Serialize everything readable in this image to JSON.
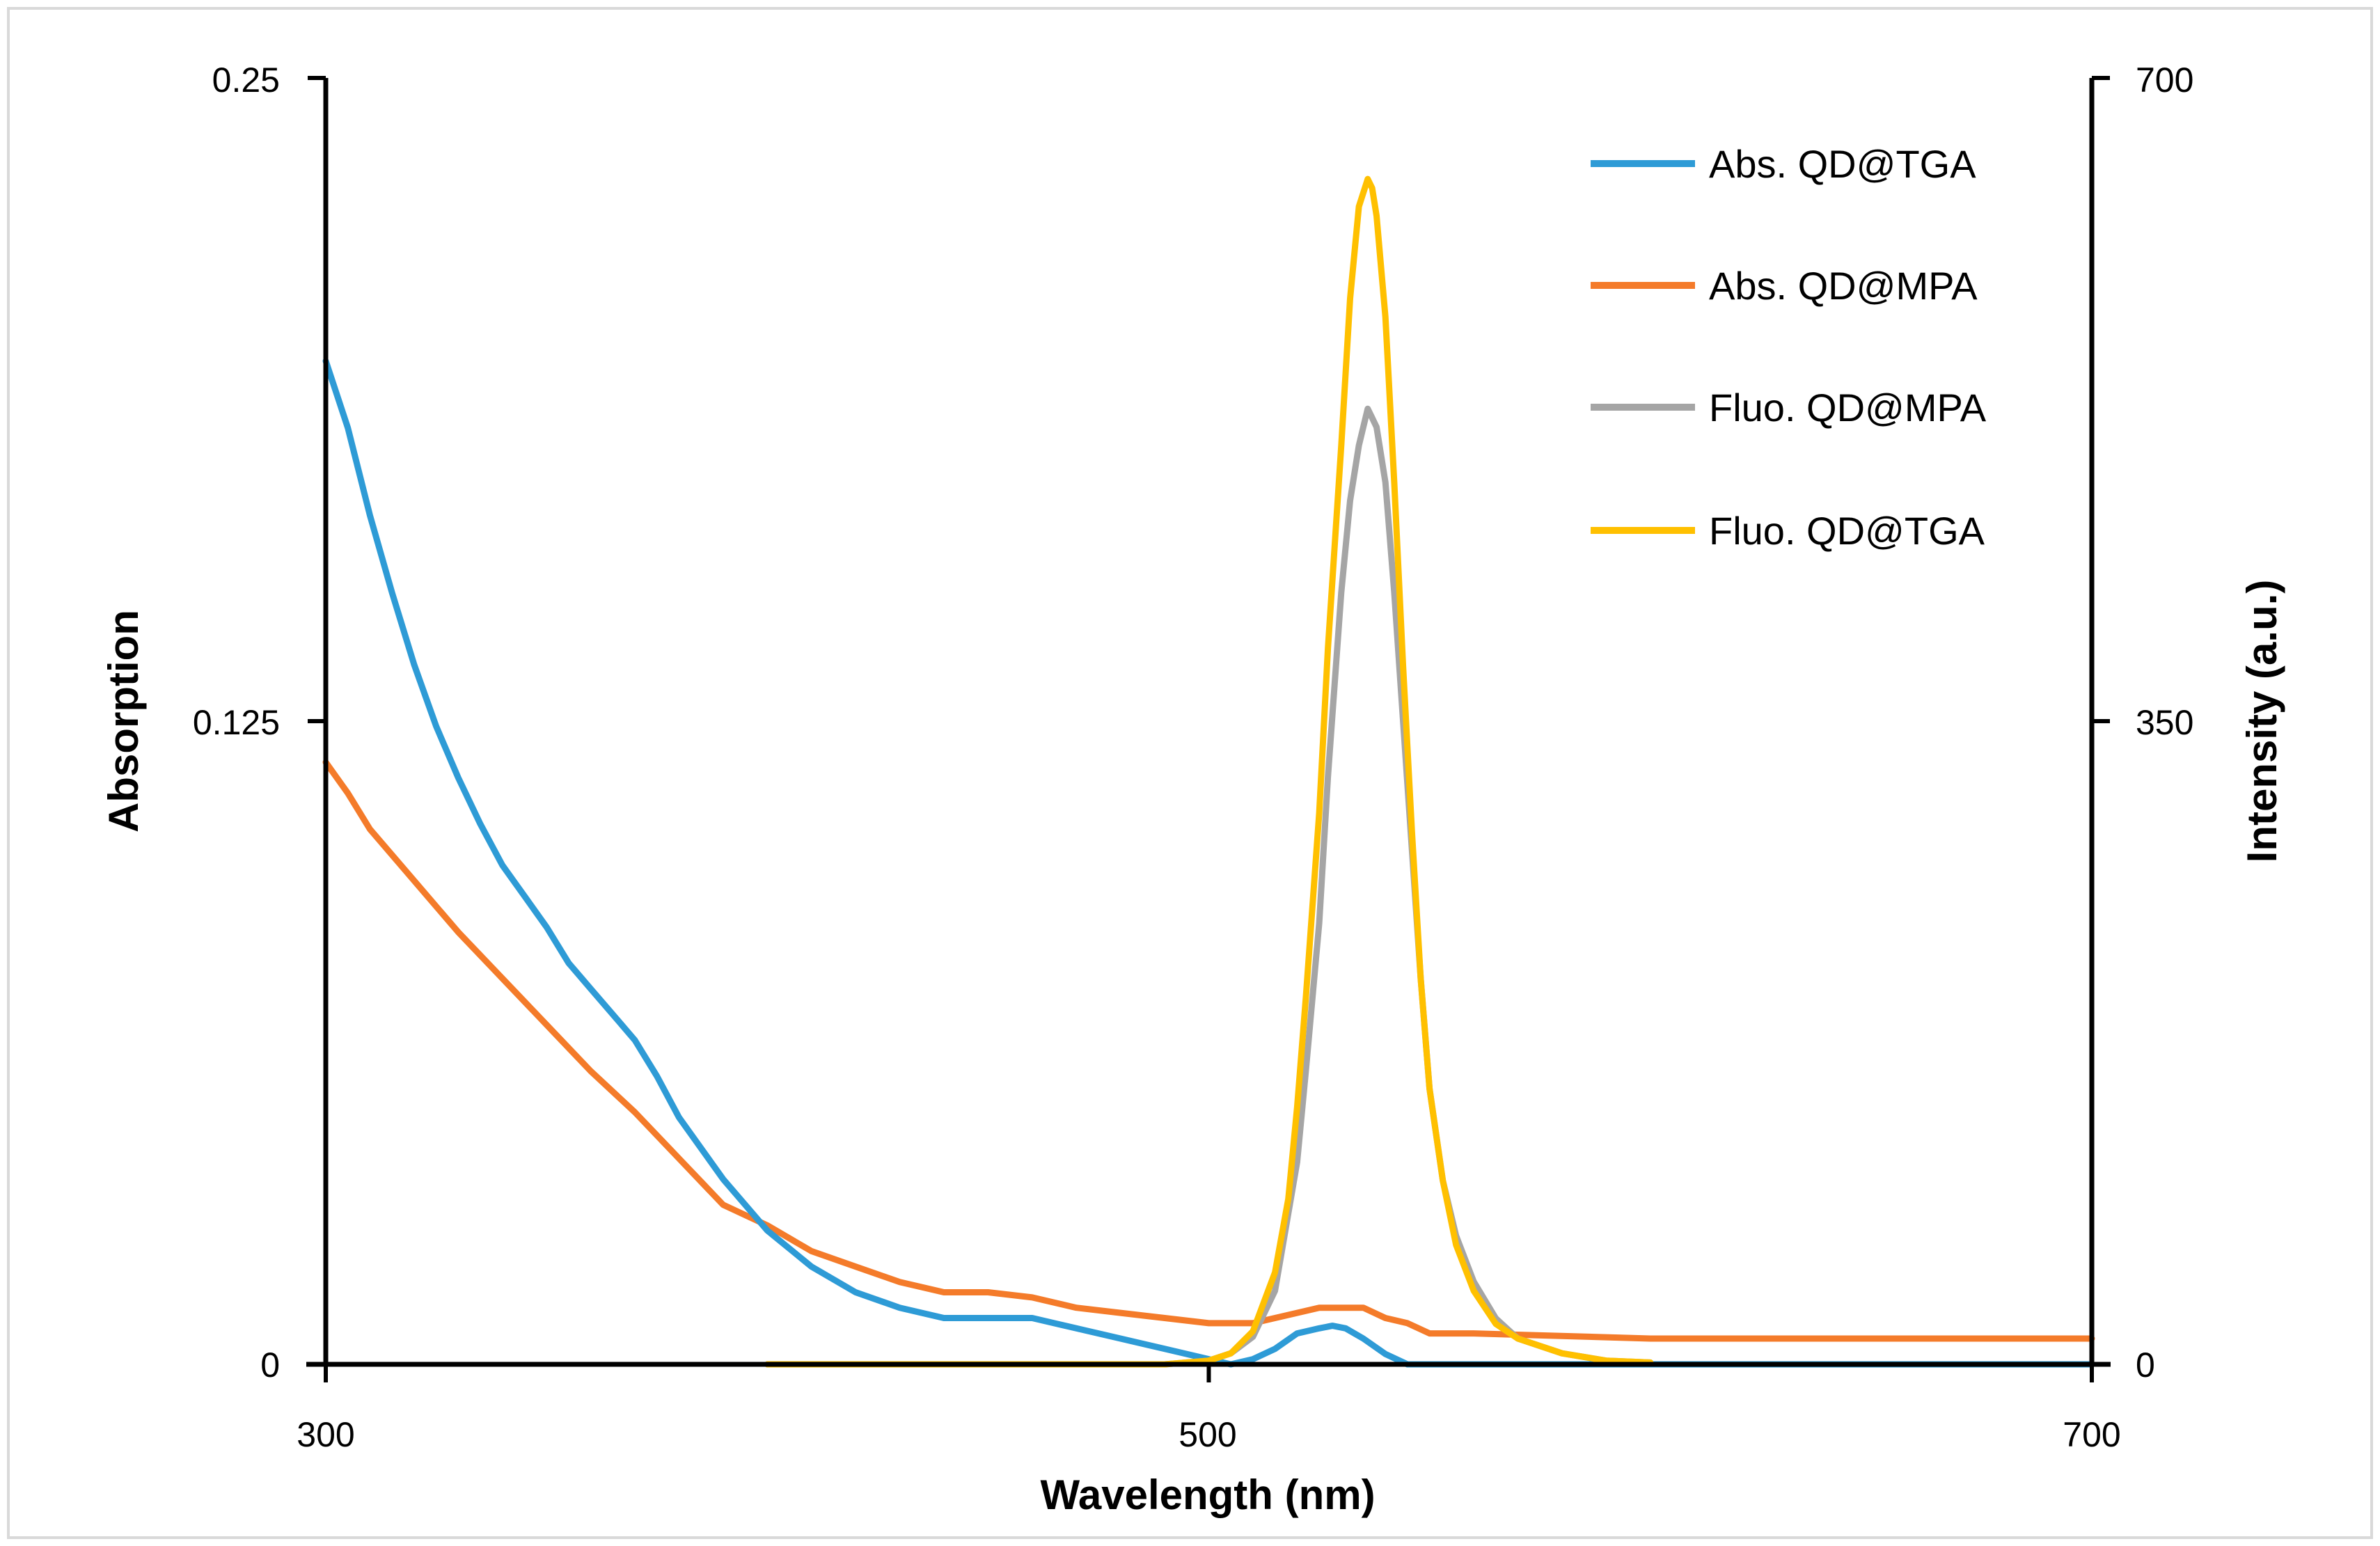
{
  "chart_data": {
    "type": "line",
    "title": "",
    "xlabel": "Wavelength (nm)",
    "ylabel_left": "Absorption",
    "ylabel_right": "Intensity (a.u.)",
    "xlim": [
      300,
      700
    ],
    "ylim_left": [
      0,
      0.25
    ],
    "ylim_right": [
      0,
      700
    ],
    "x_ticks": [
      "300",
      "500",
      "700"
    ],
    "y_left_ticks": [
      "0",
      "0.125",
      "0.25"
    ],
    "y_right_ticks": [
      "0",
      "350",
      "700"
    ],
    "grid": false,
    "legend_position": "top-right",
    "series": [
      {
        "name": "Abs. QD@TGA",
        "axis": "left",
        "color": "#2E9BD6",
        "x": [
          300,
          305,
          310,
          315,
          320,
          325,
          330,
          335,
          340,
          345,
          350,
          355,
          360,
          365,
          370,
          375,
          380,
          390,
          400,
          410,
          420,
          430,
          440,
          450,
          460,
          470,
          480,
          490,
          500,
          505,
          510,
          515,
          520,
          525,
          528,
          531,
          535,
          540,
          545,
          550,
          560,
          600,
          650,
          700
        ],
        "values": [
          0.195,
          0.182,
          0.165,
          0.15,
          0.136,
          0.124,
          0.114,
          0.105,
          0.097,
          0.091,
          0.085,
          0.078,
          0.073,
          0.068,
          0.063,
          0.056,
          0.048,
          0.036,
          0.026,
          0.019,
          0.014,
          0.011,
          0.009,
          0.009,
          0.009,
          0.007,
          0.005,
          0.003,
          0.001,
          0.0,
          0.001,
          0.003,
          0.006,
          0.007,
          0.0075,
          0.007,
          0.005,
          0.002,
          0.0,
          0.0,
          0.0,
          0.0,
          0.0,
          0.0
        ]
      },
      {
        "name": "Abs. QD@MPA",
        "axis": "left",
        "color": "#F47B2A",
        "x": [
          300,
          305,
          310,
          320,
          330,
          340,
          350,
          360,
          370,
          380,
          390,
          400,
          410,
          420,
          430,
          440,
          450,
          460,
          470,
          480,
          490,
          500,
          510,
          515,
          520,
          525,
          530,
          535,
          540,
          545,
          550,
          560,
          600,
          650,
          700
        ],
        "values": [
          0.117,
          0.111,
          0.104,
          0.094,
          0.084,
          0.075,
          0.066,
          0.057,
          0.049,
          0.04,
          0.031,
          0.027,
          0.022,
          0.019,
          0.016,
          0.014,
          0.014,
          0.013,
          0.011,
          0.01,
          0.009,
          0.008,
          0.008,
          0.009,
          0.01,
          0.011,
          0.011,
          0.011,
          0.009,
          0.008,
          0.006,
          0.006,
          0.005,
          0.005,
          0.005
        ]
      },
      {
        "name": "Fluo. QD@MPA",
        "axis": "right",
        "color": "#A5A5A5",
        "x": [
          400,
          450,
          490,
          500,
          505,
          510,
          515,
          520,
          522,
          525,
          527,
          530,
          532,
          534,
          536,
          537,
          538,
          540,
          542,
          544,
          546,
          548,
          550,
          553,
          556,
          560,
          565,
          570,
          580,
          590,
          600
        ],
        "values": [
          0,
          0,
          0,
          2,
          6,
          15,
          40,
          110,
          160,
          240,
          320,
          420,
          470,
          500,
          520,
          515,
          510,
          480,
          420,
          350,
          280,
          210,
          150,
          100,
          70,
          45,
          25,
          14,
          6,
          2,
          1
        ]
      },
      {
        "name": "Fluo. QD@TGA",
        "axis": "right",
        "color": "#FFC000",
        "x": [
          400,
          450,
          490,
          500,
          505,
          510,
          515,
          518,
          520,
          522,
          525,
          527,
          530,
          532,
          534,
          536,
          537,
          538,
          540,
          542,
          544,
          546,
          548,
          550,
          553,
          556,
          560,
          565,
          570,
          580,
          590,
          600
        ],
        "values": [
          0,
          0,
          0,
          2,
          6,
          18,
          50,
          90,
          140,
          200,
          300,
          390,
          500,
          580,
          630,
          645,
          640,
          625,
          570,
          480,
          380,
          290,
          210,
          150,
          100,
          65,
          40,
          22,
          14,
          6,
          2,
          1
        ]
      }
    ]
  }
}
